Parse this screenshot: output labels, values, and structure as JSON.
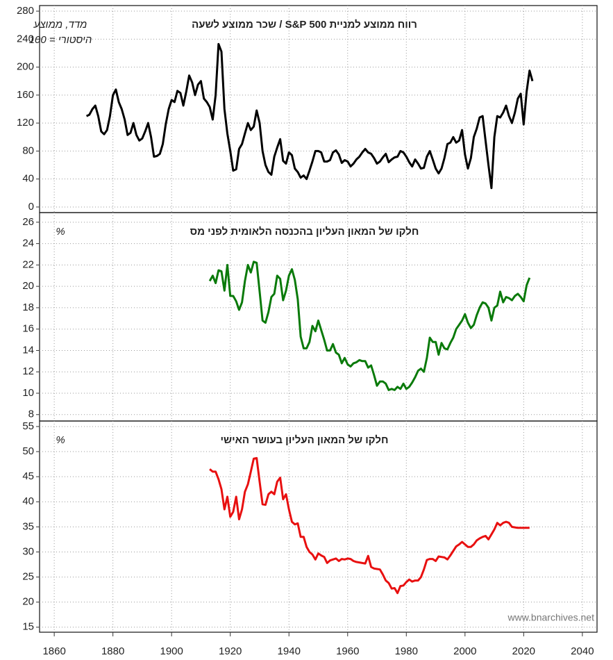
{
  "chart_data": [
    {
      "type": "line",
      "title": "רווח ממוצע למניית S&P 500 / שכר ממוצע לשעה",
      "annotation": [
        "מדד, ממוצע",
        "היסטורי = 100"
      ],
      "color": "#000000",
      "x": [
        1871,
        1872,
        1873,
        1874,
        1875,
        1876,
        1877,
        1878,
        1879,
        1880,
        1881,
        1882,
        1883,
        1884,
        1885,
        1886,
        1887,
        1888,
        1889,
        1890,
        1891,
        1892,
        1893,
        1894,
        1895,
        1896,
        1897,
        1898,
        1899,
        1900,
        1901,
        1902,
        1903,
        1904,
        1905,
        1906,
        1907,
        1908,
        1909,
        1910,
        1911,
        1912,
        1913,
        1914,
        1915,
        1916,
        1917,
        1918,
        1919,
        1920,
        1921,
        1922,
        1923,
        1924,
        1925,
        1926,
        1927,
        1928,
        1929,
        1930,
        1931,
        1932,
        1933,
        1934,
        1935,
        1936,
        1937,
        1938,
        1939,
        1940,
        1941,
        1942,
        1943,
        1944,
        1945,
        1946,
        1947,
        1948,
        1949,
        1950,
        1951,
        1952,
        1953,
        1954,
        1955,
        1956,
        1957,
        1958,
        1959,
        1960,
        1961,
        1962,
        1963,
        1964,
        1965,
        1966,
        1967,
        1968,
        1969,
        1970,
        1971,
        1972,
        1973,
        1974,
        1975,
        1976,
        1977,
        1978,
        1979,
        1980,
        1981,
        1982,
        1983,
        1984,
        1985,
        1986,
        1987,
        1988,
        1989,
        1990,
        1991,
        1992,
        1993,
        1994,
        1995,
        1996,
        1997,
        1998,
        1999,
        2000,
        2001,
        2002,
        2003,
        2004,
        2005,
        2006,
        2007,
        2008,
        2009,
        2010,
        2011,
        2012,
        2013,
        2014,
        2015,
        2016,
        2017,
        2018,
        2019,
        2020,
        2021,
        2022,
        2023
      ],
      "values": [
        130,
        132,
        140,
        145,
        130,
        108,
        104,
        110,
        130,
        160,
        168,
        150,
        140,
        125,
        103,
        106,
        120,
        103,
        95,
        98,
        108,
        120,
        100,
        72,
        73,
        76,
        90,
        118,
        140,
        153,
        150,
        166,
        163,
        145,
        165,
        188,
        178,
        160,
        175,
        180,
        155,
        150,
        143,
        125,
        160,
        233,
        222,
        140,
        105,
        80,
        52,
        54,
        83,
        90,
        105,
        120,
        110,
        115,
        138,
        120,
        80,
        60,
        50,
        46,
        72,
        85,
        97,
        66,
        62,
        78,
        74,
        55,
        50,
        42,
        45,
        40,
        52,
        65,
        80,
        80,
        78,
        65,
        65,
        67,
        78,
        81,
        75,
        63,
        67,
        65,
        58,
        62,
        68,
        72,
        78,
        83,
        78,
        76,
        70,
        62,
        65,
        71,
        76,
        64,
        68,
        71,
        72,
        80,
        78,
        72,
        64,
        58,
        68,
        62,
        55,
        56,
        72,
        80,
        68,
        55,
        48,
        55,
        70,
        90,
        92,
        100,
        92,
        95,
        110,
        75,
        55,
        70,
        100,
        112,
        128,
        130,
        95,
        60,
        27,
        100,
        130,
        128,
        135,
        145,
        130,
        120,
        135,
        155,
        162,
        118,
        165,
        195,
        180
      ],
      "xlim": [
        1855,
        2045
      ],
      "ylim": [
        -8,
        288
      ],
      "yticks": [
        0,
        40,
        80,
        120,
        160,
        200,
        240,
        280
      ],
      "grid": true
    },
    {
      "type": "line",
      "title": "חלקו של המאון העליון בהכנסה הלאומית לפני מס",
      "annotation": [
        "%"
      ],
      "color": "#0a7a0a",
      "x": [
        1913,
        1914,
        1915,
        1916,
        1917,
        1918,
        1919,
        1920,
        1921,
        1922,
        1923,
        1924,
        1925,
        1926,
        1927,
        1928,
        1929,
        1930,
        1931,
        1932,
        1933,
        1934,
        1935,
        1936,
        1937,
        1938,
        1939,
        1940,
        1941,
        1942,
        1943,
        1944,
        1945,
        1946,
        1947,
        1948,
        1949,
        1950,
        1951,
        1952,
        1953,
        1954,
        1955,
        1956,
        1957,
        1958,
        1959,
        1960,
        1961,
        1962,
        1963,
        1964,
        1965,
        1966,
        1967,
        1968,
        1969,
        1970,
        1971,
        1972,
        1973,
        1974,
        1975,
        1976,
        1977,
        1978,
        1979,
        1980,
        1981,
        1982,
        1983,
        1984,
        1985,
        1986,
        1987,
        1988,
        1989,
        1990,
        1991,
        1992,
        1993,
        1994,
        1995,
        1996,
        1997,
        1998,
        1999,
        2000,
        2001,
        2002,
        2003,
        2004,
        2005,
        2006,
        2007,
        2008,
        2009,
        2010,
        2011,
        2012,
        2013,
        2014,
        2015,
        2016,
        2017,
        2018,
        2019,
        2020,
        2021,
        2022
      ],
      "values": [
        20.5,
        21.0,
        20.3,
        21.5,
        21.4,
        19.6,
        22.0,
        19.1,
        19.1,
        18.6,
        17.8,
        18.5,
        20.5,
        22.0,
        21.3,
        22.3,
        22.2,
        19.5,
        16.8,
        16.6,
        17.6,
        19.0,
        19.3,
        21.0,
        20.7,
        18.7,
        19.6,
        21.0,
        21.6,
        20.6,
        18.8,
        15.3,
        14.2,
        14.2,
        14.8,
        16.3,
        15.8,
        16.8,
        15.9,
        15.0,
        14.0,
        14.0,
        14.6,
        13.8,
        13.6,
        12.8,
        13.3,
        12.7,
        12.5,
        12.8,
        12.9,
        13.1,
        13.0,
        13.0,
        12.4,
        12.6,
        11.7,
        10.7,
        11.1,
        11.1,
        10.9,
        10.3,
        10.4,
        10.3,
        10.6,
        10.4,
        10.9,
        10.4,
        10.6,
        11.0,
        11.5,
        12.1,
        12.3,
        12.0,
        13.3,
        15.2,
        14.8,
        14.8,
        13.6,
        14.7,
        14.2,
        14.1,
        14.7,
        15.2,
        16.0,
        16.4,
        16.8,
        17.4,
        16.6,
        16.1,
        16.4,
        17.3,
        18.0,
        18.5,
        18.4,
        18.0,
        16.8,
        18.0,
        18.2,
        19.5,
        18.5,
        19.0,
        18.9,
        18.7,
        19.1,
        19.3,
        19.0,
        18.6,
        20.1,
        20.8
      ],
      "xlim": [
        1855,
        2045
      ],
      "ylim": [
        7.4,
        26.9
      ],
      "yticks": [
        8,
        10,
        12,
        14,
        16,
        18,
        20,
        22,
        24,
        26
      ],
      "grid": true
    },
    {
      "type": "line",
      "title": "חלקו של המאון העליון בעושר האישי",
      "annotation": [
        "%"
      ],
      "color": "#e81010",
      "watermark": "www.bnarchives.net",
      "x": [
        1913,
        1914,
        1915,
        1916,
        1917,
        1918,
        1919,
        1920,
        1921,
        1922,
        1923,
        1924,
        1925,
        1926,
        1927,
        1928,
        1929,
        1930,
        1931,
        1932,
        1933,
        1934,
        1935,
        1936,
        1937,
        1938,
        1939,
        1940,
        1941,
        1942,
        1943,
        1944,
        1945,
        1946,
        1947,
        1948,
        1949,
        1950,
        1951,
        1952,
        1953,
        1954,
        1955,
        1956,
        1957,
        1958,
        1959,
        1960,
        1961,
        1962,
        1963,
        1964,
        1965,
        1966,
        1967,
        1968,
        1969,
        1970,
        1971,
        1972,
        1973,
        1974,
        1975,
        1976,
        1977,
        1978,
        1979,
        1980,
        1981,
        1982,
        1983,
        1984,
        1985,
        1986,
        1987,
        1988,
        1989,
        1990,
        1991,
        1992,
        1993,
        1994,
        1995,
        1996,
        1997,
        1998,
        1999,
        2000,
        2001,
        2002,
        2003,
        2004,
        2005,
        2006,
        2007,
        2008,
        2009,
        2010,
        2011,
        2012,
        2013,
        2014,
        2015,
        2016,
        2017,
        2018,
        2019,
        2020,
        2021,
        2022
      ],
      "values": [
        46.5,
        46.0,
        46.0,
        44.5,
        42.5,
        38.5,
        41.0,
        37.0,
        38.0,
        41.0,
        36.5,
        38.5,
        42.0,
        43.5,
        46.0,
        48.6,
        48.7,
        44.0,
        39.5,
        39.4,
        41.5,
        42.0,
        41.5,
        44.0,
        44.8,
        40.5,
        41.5,
        38.5,
        36.0,
        35.5,
        35.7,
        33.0,
        33.0,
        31.0,
        30.0,
        29.5,
        28.5,
        29.7,
        29.3,
        29.0,
        27.8,
        28.3,
        28.5,
        28.7,
        28.2,
        28.6,
        28.5,
        28.7,
        28.6,
        28.2,
        28.0,
        27.9,
        27.8,
        27.7,
        29.2,
        27.0,
        26.7,
        26.6,
        26.5,
        25.5,
        24.3,
        23.8,
        22.7,
        22.8,
        21.8,
        23.2,
        23.3,
        24.0,
        24.5,
        24.1,
        24.3,
        24.3,
        25.0,
        26.5,
        28.4,
        28.6,
        28.6,
        28.2,
        29.1,
        29.0,
        28.9,
        28.5,
        29.3,
        30.2,
        31.1,
        31.5,
        32.0,
        31.5,
        31.0,
        31.0,
        31.5,
        32.3,
        32.7,
        33.0,
        33.2,
        32.5,
        33.5,
        34.5,
        35.8,
        35.3,
        35.8,
        36.0,
        35.8,
        35.0,
        34.9,
        34.8,
        34.8,
        34.8,
        34.8,
        34.8
      ],
      "xlim": [
        1855,
        2045
      ],
      "xticks": [
        1860,
        1880,
        1900,
        1920,
        1940,
        1960,
        1980,
        2000,
        2020,
        2040
      ],
      "ylim": [
        14,
        56.1
      ],
      "yticks": [
        15,
        20,
        25,
        30,
        35,
        40,
        45,
        50,
        55
      ],
      "grid": true
    }
  ]
}
